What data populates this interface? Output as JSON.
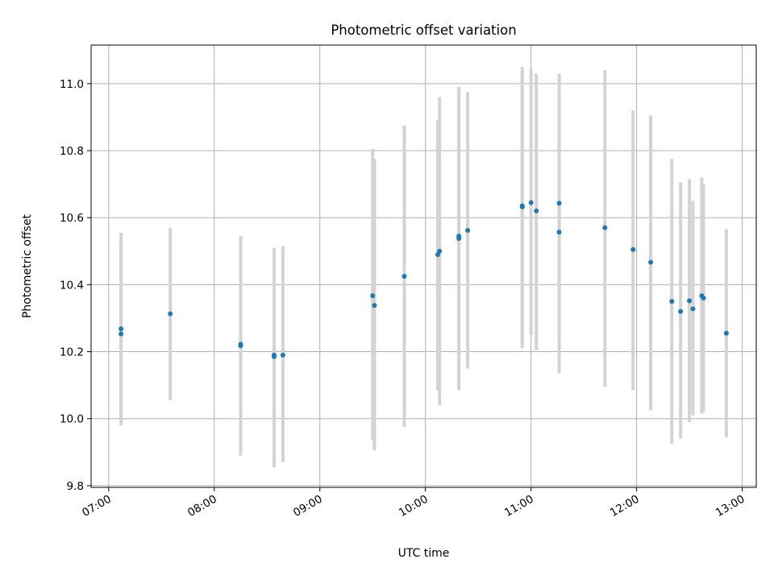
{
  "chart_data": {
    "type": "scatter",
    "title": "Photometric offset variation",
    "xlabel": "UTC time",
    "ylabel": "Photometric offset",
    "xlim": [
      "06:50",
      "13:08"
    ],
    "ylim": [
      9.795,
      11.115
    ],
    "x_ticks": [
      "07:00",
      "08:00",
      "09:00",
      "10:00",
      "11:00",
      "12:00",
      "13:00"
    ],
    "y_ticks": [
      9.8,
      10.0,
      10.2,
      10.4,
      10.6,
      10.8,
      11.0
    ],
    "grid": true,
    "colors": {
      "points": "#1f77b4",
      "errorbars": "#d3d3d3",
      "grid": "#b0b0b0"
    },
    "series": [
      {
        "points": [
          {
            "x": "07:07",
            "y": 10.253,
            "ylow": 9.98,
            "yhigh": 10.525
          },
          {
            "x": "07:07",
            "y": 10.268,
            "ylow": 9.98,
            "yhigh": 10.555
          },
          {
            "x": "07:35",
            "y": 10.313,
            "ylow": 10.055,
            "yhigh": 10.57
          },
          {
            "x": "08:15",
            "y": 10.222,
            "ylow": 9.895,
            "yhigh": 10.545
          },
          {
            "x": "08:15",
            "y": 10.218,
            "ylow": 9.89,
            "yhigh": 10.545
          },
          {
            "x": "08:34",
            "y": 10.185,
            "ylow": 9.855,
            "yhigh": 10.51
          },
          {
            "x": "08:34",
            "y": 10.19,
            "ylow": 9.88,
            "yhigh": 10.5
          },
          {
            "x": "08:39",
            "y": 10.19,
            "ylow": 9.87,
            "yhigh": 10.515
          },
          {
            "x": "09:30",
            "y": 10.367,
            "ylow": 9.935,
            "yhigh": 10.805
          },
          {
            "x": "09:31",
            "y": 10.338,
            "ylow": 9.905,
            "yhigh": 10.775
          },
          {
            "x": "09:48",
            "y": 10.425,
            "ylow": 9.975,
            "yhigh": 10.875
          },
          {
            "x": "10:07",
            "y": 10.49,
            "ylow": 10.085,
            "yhigh": 10.89
          },
          {
            "x": "10:08",
            "y": 10.5,
            "ylow": 10.04,
            "yhigh": 10.96
          },
          {
            "x": "10:19",
            "y": 10.545,
            "ylow": 10.085,
            "yhigh": 10.99
          },
          {
            "x": "10:19",
            "y": 10.538,
            "ylow": 10.085,
            "yhigh": 10.99
          },
          {
            "x": "10:24",
            "y": 10.562,
            "ylow": 10.15,
            "yhigh": 10.975
          },
          {
            "x": "10:55",
            "y": 10.635,
            "ylow": 10.21,
            "yhigh": 11.05
          },
          {
            "x": "10:55",
            "y": 10.632,
            "ylow": 10.225,
            "yhigh": 11.045
          },
          {
            "x": "11:00",
            "y": 10.645,
            "ylow": 10.25,
            "yhigh": 11.045
          },
          {
            "x": "11:03",
            "y": 10.62,
            "ylow": 10.205,
            "yhigh": 11.03
          },
          {
            "x": "11:16",
            "y": 10.643,
            "ylow": 10.255,
            "yhigh": 11.03
          },
          {
            "x": "11:16",
            "y": 10.557,
            "ylow": 10.135,
            "yhigh": 10.975
          },
          {
            "x": "11:42",
            "y": 10.57,
            "ylow": 10.095,
            "yhigh": 11.04
          },
          {
            "x": "11:58",
            "y": 10.505,
            "ylow": 10.085,
            "yhigh": 10.92
          },
          {
            "x": "12:08",
            "y": 10.467,
            "ylow": 10.025,
            "yhigh": 10.905
          },
          {
            "x": "12:20",
            "y": 10.35,
            "ylow": 9.925,
            "yhigh": 10.775
          },
          {
            "x": "12:25",
            "y": 10.32,
            "ylow": 9.94,
            "yhigh": 10.705
          },
          {
            "x": "12:30",
            "y": 10.352,
            "ylow": 9.99,
            "yhigh": 10.715
          },
          {
            "x": "12:32",
            "y": 10.328,
            "ylow": 10.01,
            "yhigh": 10.65
          },
          {
            "x": "12:37",
            "y": 10.367,
            "ylow": 10.015,
            "yhigh": 10.72
          },
          {
            "x": "12:38",
            "y": 10.36,
            "ylow": 10.02,
            "yhigh": 10.7
          },
          {
            "x": "12:51",
            "y": 10.255,
            "ylow": 9.945,
            "yhigh": 10.565
          }
        ]
      }
    ]
  }
}
